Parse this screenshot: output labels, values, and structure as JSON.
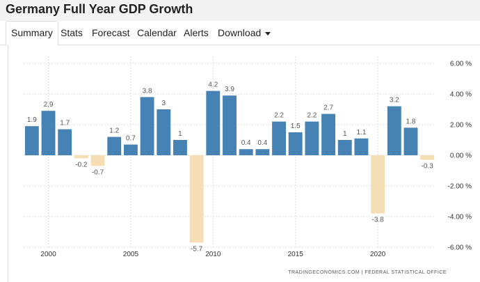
{
  "page": {
    "title": "Germany Full Year GDP Growth"
  },
  "nav": {
    "tabs": [
      {
        "label": "Summary",
        "active": true
      },
      {
        "label": "Stats"
      },
      {
        "label": "Forecast"
      },
      {
        "label": "Calendar"
      },
      {
        "label": "Alerts"
      },
      {
        "label": "Download"
      }
    ]
  },
  "colors": {
    "positive_bar": "#4682b4",
    "negative_bar": "#f5deb3",
    "grid": "#dddddd"
  },
  "chart_data": {
    "type": "bar",
    "title": "Germany Full Year GDP Growth",
    "xlabel": "",
    "ylabel": "",
    "unit": "%",
    "ylim": [
      -6,
      6
    ],
    "yticks": [
      6,
      4,
      2,
      0,
      -2,
      -4,
      -6
    ],
    "ytick_labels": [
      "6.00 %",
      "4.00 %",
      "2.00 %",
      "0.00 %",
      "-2.00 %",
      "-4.00 %",
      "-6.00 %"
    ],
    "xtick_labels": [
      "2000",
      "2005",
      "2010",
      "2015",
      "2020"
    ],
    "grid": true,
    "categories": [
      1999,
      2000,
      2001,
      2002,
      2003,
      2004,
      2005,
      2006,
      2007,
      2008,
      2009,
      2010,
      2011,
      2012,
      2013,
      2014,
      2015,
      2016,
      2017,
      2018,
      2019,
      2020,
      2021,
      2022,
      2023
    ],
    "values": [
      1.9,
      2.9,
      1.7,
      -0.2,
      -0.7,
      1.2,
      0.7,
      3.8,
      3,
      1,
      -5.7,
      4.2,
      3.9,
      0.4,
      0.4,
      2.2,
      1.5,
      2.2,
      2.7,
      1,
      1.1,
      -3.8,
      3.2,
      1.8,
      -0.3
    ],
    "value_labels": [
      "1.9",
      "2.9",
      "1.7",
      "-0.2",
      "-0.7",
      "1.2",
      "0.7",
      "3.8",
      "3",
      "1",
      "-5.7",
      "4.2",
      "3.9",
      "0.4",
      "0.4",
      "2.2",
      "1.5",
      "2.2",
      "2.7",
      "1",
      "1.1",
      "-3.8",
      "3.2",
      "1.8",
      "-0.3"
    ],
    "source": "TRADINGECONOMICS.COM | FEDERAL STATISTICAL OFFICE"
  }
}
